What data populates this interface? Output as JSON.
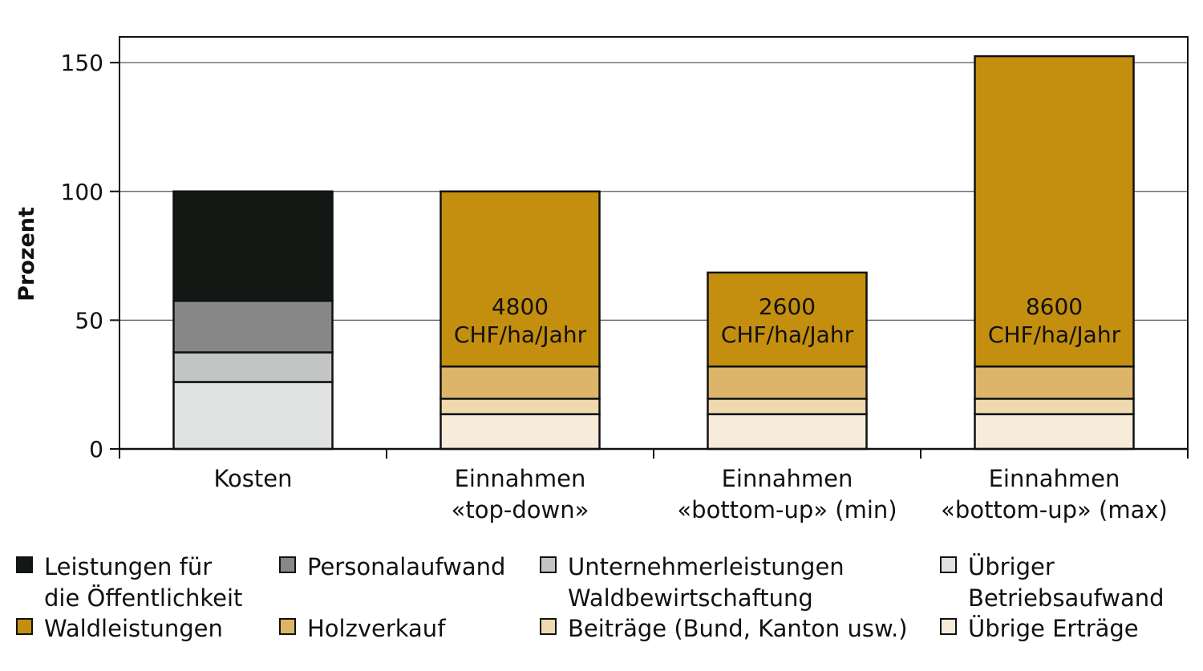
{
  "chart_data": {
    "type": "bar",
    "stacked": true,
    "ylabel": "Prozent",
    "ylim": [
      0,
      160
    ],
    "yticks": [
      0,
      50,
      100,
      150
    ],
    "grid": true,
    "categories": [
      [
        "Kosten"
      ],
      [
        "Einnahmen",
        "«top-down»"
      ],
      [
        "Einnahmen",
        "«bottom-up» (min)"
      ],
      [
        "Einnahmen",
        "«bottom-up» (max)"
      ]
    ],
    "series": [
      {
        "name": "Übriger Betriebsaufwand",
        "color": "#e0e2e1",
        "values": [
          26,
          0,
          0,
          0
        ]
      },
      {
        "name": "Unternehmerleistungen Waldbewirtschaftung",
        "color": "#c4c5c5",
        "values": [
          11.5,
          0,
          0,
          0
        ]
      },
      {
        "name": "Personalaufwand",
        "color": "#868786",
        "values": [
          20,
          0,
          0,
          0
        ]
      },
      {
        "name": "Leistungen für die Öffentlichkeit",
        "color": "#141815",
        "values": [
          42.5,
          0,
          0,
          0
        ]
      },
      {
        "name": "Übrige Erträge",
        "color": "#f7ecd9",
        "values": [
          0,
          13.5,
          13.5,
          13.5
        ]
      },
      {
        "name": "Beiträge (Bund, Kanton usw.)",
        "color": "#eed9b1",
        "values": [
          0,
          6,
          6,
          6
        ]
      },
      {
        "name": "Holzverkauf",
        "color": "#dcb56b",
        "values": [
          0,
          12.5,
          12.5,
          12.5
        ]
      },
      {
        "name": "Waldleistungen",
        "color": "#c48e0e",
        "values": [
          0,
          68,
          36.5,
          120.5
        ]
      }
    ],
    "annotations": [
      null,
      [
        "4800",
        "CHF/ha/Jahr"
      ],
      [
        "2600",
        "CHF/ha/Jahr"
      ],
      [
        "8600",
        "CHF/ha/Jahr"
      ]
    ]
  },
  "legend": [
    {
      "label": "Leistungen für\ndie Öffentlichkeit",
      "color": "#141815"
    },
    {
      "label": "Personalaufwand",
      "color": "#868786"
    },
    {
      "label": "Unternehmerleistungen\nWaldbewirtschaftung",
      "color": "#c4c5c5"
    },
    {
      "label": "Übriger\nBetriebsaufwand",
      "color": "#e0e2e1"
    },
    {
      "label": "Waldleistungen",
      "color": "#c48e0e"
    },
    {
      "label": "Holzverkauf",
      "color": "#dcb56b"
    },
    {
      "label": "Beiträge (Bund, Kanton usw.)",
      "color": "#eed9b1"
    },
    {
      "label": "Übrige Erträge",
      "color": "#f7ecd9"
    }
  ]
}
